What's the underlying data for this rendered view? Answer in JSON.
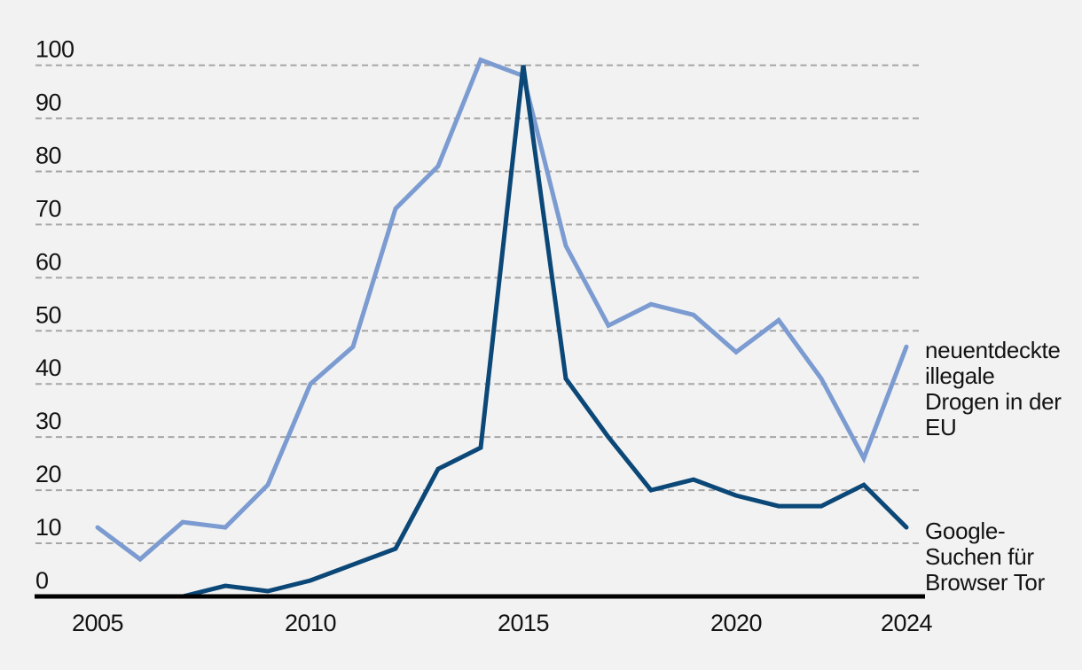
{
  "page": {
    "background_color": "#f2f2f2",
    "text_color": "#131313",
    "title": ""
  },
  "chart_data": {
    "type": "line",
    "x": [
      2005,
      2006,
      2007,
      2008,
      2009,
      2010,
      2011,
      2012,
      2013,
      2014,
      2015,
      2016,
      2017,
      2018,
      2019,
      2020,
      2021,
      2022,
      2023,
      2024
    ],
    "series": [
      {
        "key": "drugs-eu",
        "name": "neuentdeckte illegale Drogen in der EU",
        "label_lines": [
          "neuentdeckte",
          "illegale",
          "Drogen in der",
          "EU"
        ],
        "color": "#7b9bd1",
        "values": [
          13,
          7,
          14,
          13,
          21,
          40,
          47,
          73,
          81,
          101,
          98,
          66,
          51,
          55,
          53,
          46,
          52,
          41,
          26,
          47
        ]
      },
      {
        "key": "google-tor",
        "name": "Google-Suchen für Browser Tor",
        "label_lines": [
          "Google-",
          "Suchen für",
          "Browser Tor"
        ],
        "color": "#0b4777",
        "values": [
          null,
          null,
          0,
          2,
          1,
          3,
          6,
          9,
          24,
          28,
          100,
          41,
          30,
          20,
          22,
          19,
          17,
          17,
          21,
          13
        ]
      }
    ],
    "title": "",
    "xlabel": "",
    "ylabel": "",
    "ylim": [
      0,
      100
    ],
    "ytick_step": 10,
    "ytick_labels": [
      "0",
      "10",
      "20",
      "30",
      "40",
      "50",
      "60",
      "70",
      "80",
      "90",
      "100"
    ],
    "xtick_labels": [
      "2005",
      "2010",
      "2015",
      "2020",
      "2024"
    ],
    "grid": "horizontal-dashed",
    "gridline_color": "#a6a6a6",
    "axis_color": "#000000",
    "legend_position": "right-outside-at-line-end"
  }
}
